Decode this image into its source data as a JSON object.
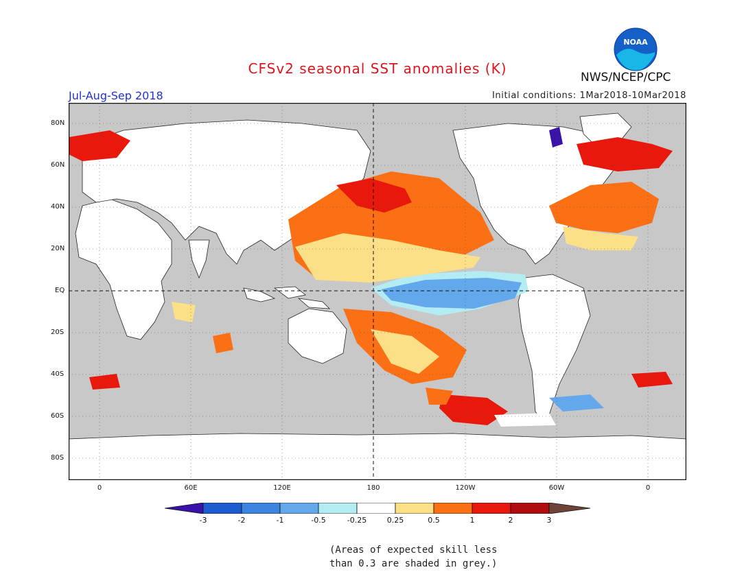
{
  "title": "CFSv2 seasonal SST anomalies (K)",
  "agency": "NWS/NCEP/CPC",
  "logo_text": "NOAA",
  "period": "Jul-Aug-Sep 2018",
  "initial_conditions": "Initial conditions: 1Mar2018-10Mar2018",
  "lat_labels": [
    "80N",
    "60N",
    "40N",
    "20N",
    "EQ",
    "20S",
    "40S",
    "60S",
    "80S"
  ],
  "lon_labels": [
    "0",
    "60E",
    "120E",
    "180",
    "120W",
    "60W",
    "0"
  ],
  "colorbar": {
    "ticks": [
      "-3",
      "-2",
      "-1",
      "-0.5",
      "-0.25",
      "0.25",
      "0.5",
      "1",
      "2",
      "3"
    ],
    "colors": [
      "#3a12a8",
      "#1c5cd0",
      "#3c84e0",
      "#64a8ec",
      "#b4ecf4",
      "#ffffff",
      "#fbe088",
      "#fb7014",
      "#e8180c",
      "#b00e0e",
      "#6e4438"
    ]
  },
  "note_line1": "(Areas of expected skill less",
  "note_line2": "than 0.3 are shaded in grey.)"
}
